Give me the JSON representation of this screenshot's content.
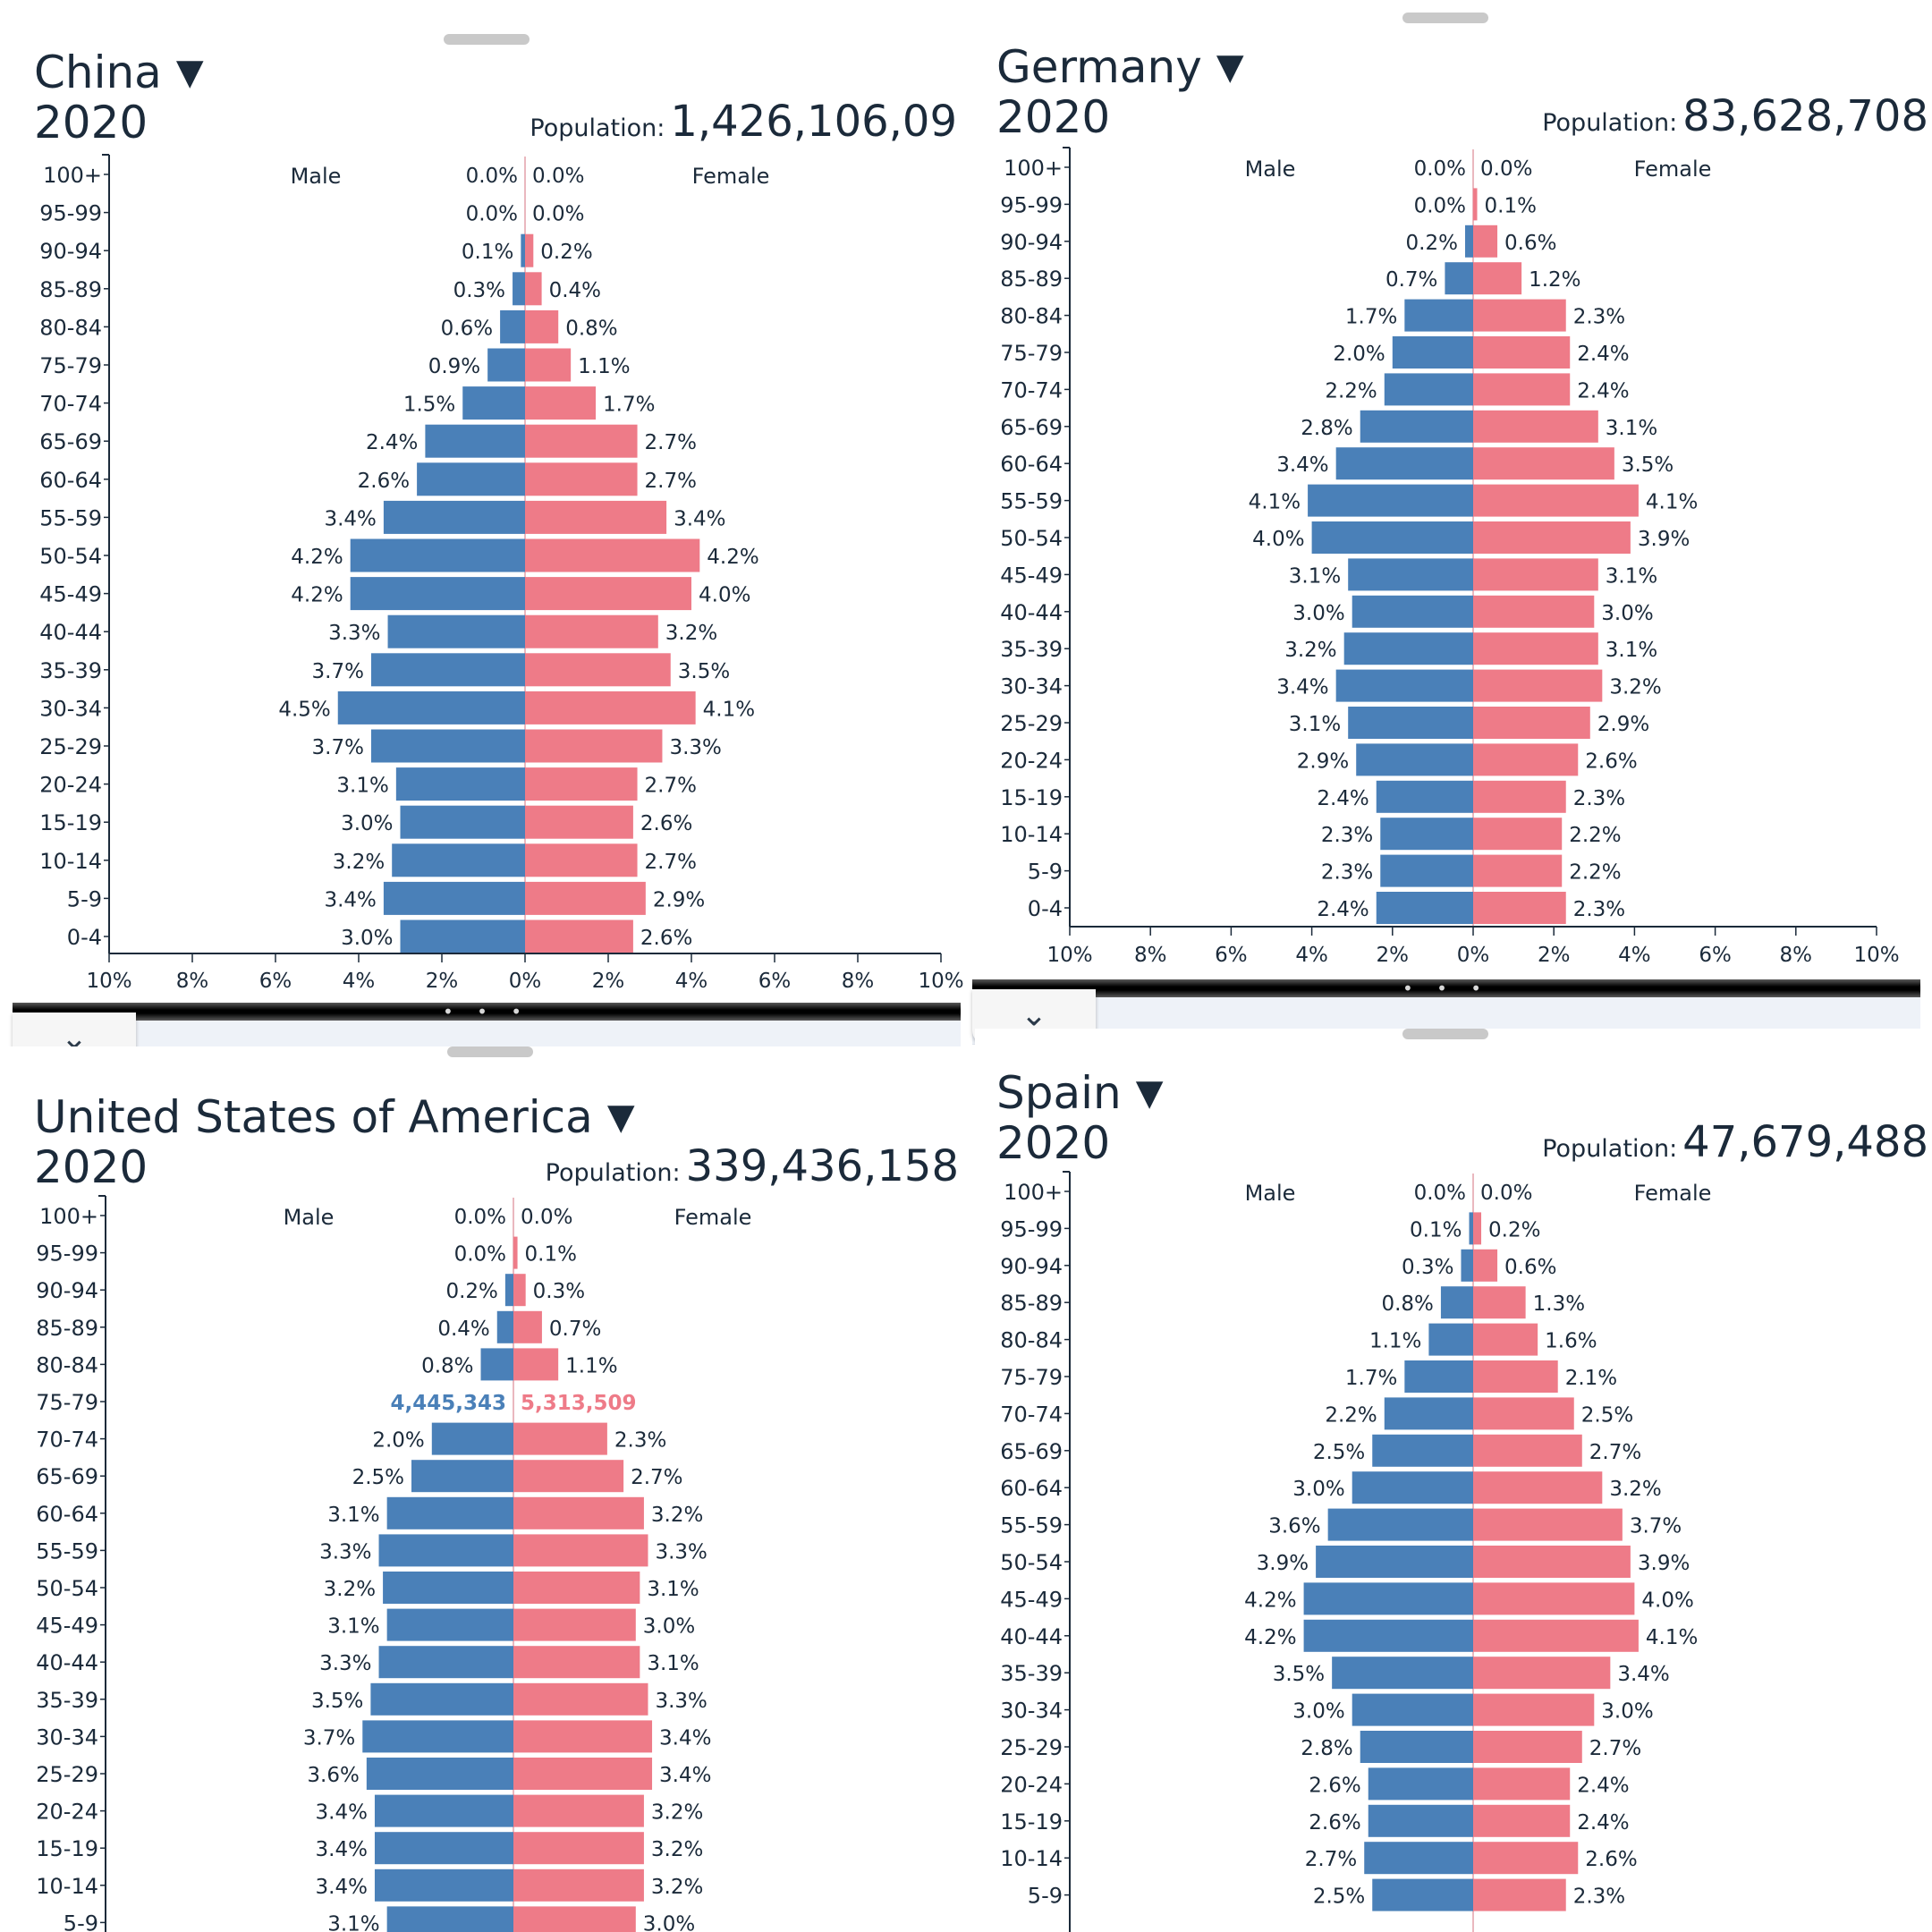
{
  "ui": {
    "collapse_glyph": "⌄",
    "caret_glyph": "▼",
    "divider_dots": "• • •",
    "population_label": "Population:",
    "colors": {
      "male": "#4a80b8",
      "female": "#ee7b88",
      "text": "#1b2a3a",
      "axis": "#1b2a3a"
    }
  },
  "panels": [
    {
      "country": "China",
      "year": "2020",
      "population": "1,426,106,09",
      "male_label": "Male",
      "female_label": "Female"
    },
    {
      "country": "Germany",
      "year": "2020",
      "population": "83,628,708",
      "male_label": "Male",
      "female_label": "Female"
    },
    {
      "country": "United States of America",
      "year": "2020",
      "population": "339,436,158",
      "male_label": "Male",
      "female_label": "Female",
      "hover": {
        "group": "75-79",
        "male": "4,445,343",
        "female": "5,313,509"
      }
    },
    {
      "country": "Spain",
      "year": "2020",
      "population": "47,679,488",
      "male_label": "Male",
      "female_label": "Female"
    }
  ],
  "chart_data": [
    {
      "type": "bar",
      "subtype": "population-pyramid",
      "title": "China",
      "categories": [
        "100+",
        "95-99",
        "90-94",
        "85-89",
        "80-84",
        "75-79",
        "70-74",
        "65-69",
        "60-64",
        "55-59",
        "50-54",
        "45-49",
        "40-44",
        "35-39",
        "30-34",
        "25-29",
        "20-24",
        "15-19",
        "10-14",
        "5-9",
        "0-4"
      ],
      "series": [
        {
          "name": "Male",
          "color": "#4a80b8",
          "values": [
            0.0,
            0.0,
            0.1,
            0.3,
            0.6,
            0.9,
            1.5,
            2.4,
            2.6,
            3.4,
            4.2,
            4.2,
            3.3,
            3.7,
            4.5,
            3.7,
            3.1,
            3.0,
            3.2,
            3.4,
            3.0
          ]
        },
        {
          "name": "Female",
          "color": "#ee7b88",
          "values": [
            0.0,
            0.0,
            0.2,
            0.4,
            0.8,
            1.1,
            1.7,
            2.7,
            2.7,
            3.4,
            4.2,
            4.0,
            3.2,
            3.5,
            4.1,
            3.3,
            2.7,
            2.6,
            2.7,
            2.9,
            2.6
          ]
        }
      ],
      "xticks": [
        "10%",
        "8%",
        "6%",
        "4%",
        "2%",
        "0%",
        "2%",
        "4%",
        "6%",
        "8%",
        "10%"
      ],
      "xlim": [
        -10,
        10
      ]
    },
    {
      "type": "bar",
      "subtype": "population-pyramid",
      "title": "Germany",
      "categories": [
        "100+",
        "95-99",
        "90-94",
        "85-89",
        "80-84",
        "75-79",
        "70-74",
        "65-69",
        "60-64",
        "55-59",
        "50-54",
        "45-49",
        "40-44",
        "35-39",
        "30-34",
        "25-29",
        "20-24",
        "15-19",
        "10-14",
        "5-9",
        "0-4"
      ],
      "series": [
        {
          "name": "Male",
          "color": "#4a80b8",
          "values": [
            0.0,
            0.0,
            0.2,
            0.7,
            1.7,
            2.0,
            2.2,
            2.8,
            3.4,
            4.1,
            4.0,
            3.1,
            3.0,
            3.2,
            3.4,
            3.1,
            2.9,
            2.4,
            2.3,
            2.3,
            2.4
          ]
        },
        {
          "name": "Female",
          "color": "#ee7b88",
          "values": [
            0.0,
            0.1,
            0.6,
            1.2,
            2.3,
            2.4,
            2.4,
            3.1,
            3.5,
            4.1,
            3.9,
            3.1,
            3.0,
            3.1,
            3.2,
            2.9,
            2.6,
            2.3,
            2.2,
            2.2,
            2.3
          ]
        }
      ],
      "xticks": [
        "10%",
        "8%",
        "6%",
        "4%",
        "2%",
        "0%",
        "2%",
        "4%",
        "6%",
        "8%",
        "10%"
      ],
      "xlim": [
        -10,
        10
      ]
    },
    {
      "type": "bar",
      "subtype": "population-pyramid",
      "title": "United States of America",
      "categories": [
        "100+",
        "95-99",
        "90-94",
        "85-89",
        "80-84",
        "75-79",
        "70-74",
        "65-69",
        "60-64",
        "55-59",
        "50-54",
        "45-49",
        "40-44",
        "35-39",
        "30-34",
        "25-29",
        "20-24",
        "15-19",
        "10-14",
        "5-9"
      ],
      "series": [
        {
          "name": "Male",
          "color": "#4a80b8",
          "values": [
            0.0,
            0.0,
            0.2,
            0.4,
            0.8,
            null,
            2.0,
            2.5,
            3.1,
            3.3,
            3.2,
            3.1,
            3.3,
            3.5,
            3.7,
            3.6,
            3.4,
            3.4,
            3.4,
            3.1
          ]
        },
        {
          "name": "Female",
          "color": "#ee7b88",
          "values": [
            0.0,
            0.1,
            0.3,
            0.7,
            1.1,
            null,
            2.3,
            2.7,
            3.2,
            3.3,
            3.1,
            3.0,
            3.1,
            3.3,
            3.4,
            3.4,
            3.2,
            3.2,
            3.2,
            3.0
          ]
        }
      ],
      "xlim": [
        -10,
        10
      ]
    },
    {
      "type": "bar",
      "subtype": "population-pyramid",
      "title": "Spain",
      "categories": [
        "100+",
        "95-99",
        "90-94",
        "85-89",
        "80-84",
        "75-79",
        "70-74",
        "65-69",
        "60-64",
        "55-59",
        "50-54",
        "45-49",
        "40-44",
        "35-39",
        "30-34",
        "25-29",
        "20-24",
        "15-19",
        "10-14",
        "5-9"
      ],
      "series": [
        {
          "name": "Male",
          "color": "#4a80b8",
          "values": [
            0.0,
            0.1,
            0.3,
            0.8,
            1.1,
            1.7,
            2.2,
            2.5,
            3.0,
            3.6,
            3.9,
            4.2,
            4.2,
            3.5,
            3.0,
            2.8,
            2.6,
            2.6,
            2.7,
            2.5
          ]
        },
        {
          "name": "Female",
          "color": "#ee7b88",
          "values": [
            0.0,
            0.2,
            0.6,
            1.3,
            1.6,
            2.1,
            2.5,
            2.7,
            3.2,
            3.7,
            3.9,
            4.0,
            4.1,
            3.4,
            3.0,
            2.7,
            2.4,
            2.4,
            2.6,
            2.3
          ]
        }
      ],
      "xlim": [
        -10,
        10
      ]
    }
  ]
}
